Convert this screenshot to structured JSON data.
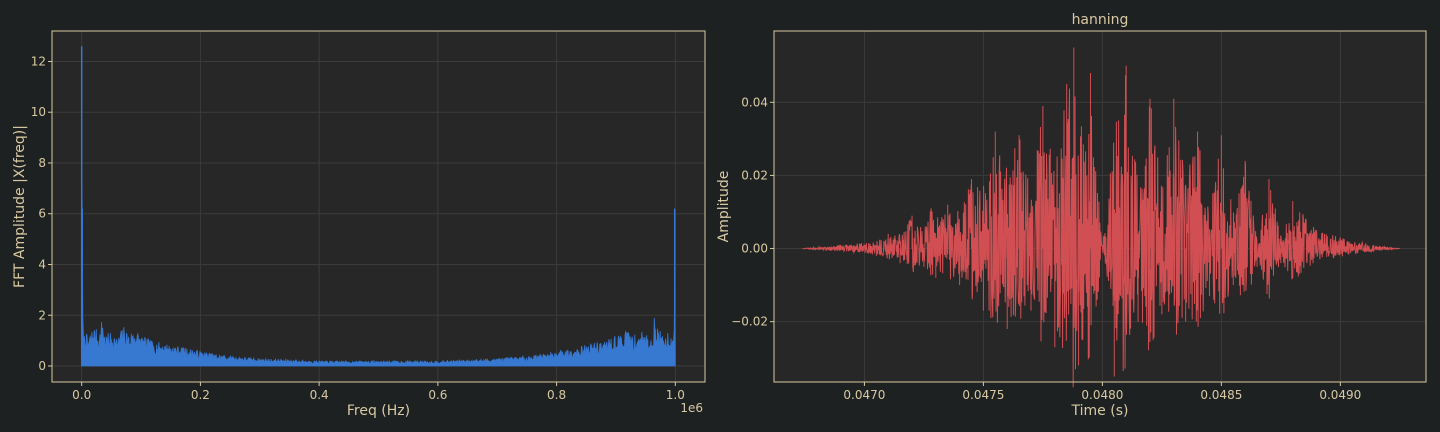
{
  "theme": {
    "figure_bg": "#1e2122",
    "axes_bg": "#272727",
    "axes_edge": "#d8c9a3",
    "grid": "#3b3b3b",
    "text": "#d8c9a3"
  },
  "chart_data": [
    {
      "type": "line",
      "title": "",
      "xlabel": "Freq (Hz)",
      "ylabel": "FFT Amplitude |X(freq)|",
      "x_offset_text": "1e6",
      "xlim": [
        -0.05,
        1.05
      ],
      "ylim": [
        -0.63,
        13.2
      ],
      "xticks": [
        0.0,
        0.2,
        0.4,
        0.6,
        0.8,
        1.0
      ],
      "xtick_labels": [
        "0.0",
        "0.2",
        "0.4",
        "0.6",
        "0.8",
        "1.0"
      ],
      "yticks": [
        0,
        2,
        4,
        6,
        8,
        10,
        12
      ],
      "ytick_labels": [
        "0",
        "2",
        "4",
        "6",
        "8",
        "10",
        "12"
      ],
      "grid": true,
      "series": [
        {
          "color": "#3778d1",
          "fill": true,
          "x": [
            0.0,
            0.001,
            0.002,
            0.004,
            0.006,
            0.01,
            0.02,
            0.03,
            0.035,
            0.04,
            0.05,
            0.06,
            0.07,
            0.08,
            0.09,
            0.1,
            0.12,
            0.14,
            0.16,
            0.18,
            0.2,
            0.22,
            0.25,
            0.3,
            0.35,
            0.4,
            0.45,
            0.5,
            0.55,
            0.6,
            0.65,
            0.7,
            0.75,
            0.78,
            0.8,
            0.82,
            0.84,
            0.86,
            0.88,
            0.9,
            0.91,
            0.92,
            0.93,
            0.94,
            0.95,
            0.96,
            0.965,
            0.97,
            0.98,
            0.99,
            0.994,
            0.996,
            0.998,
            0.999,
            1.0
          ],
          "y": [
            12.6,
            6.2,
            1.6,
            1.2,
            1.5,
            1.1,
            1.6,
            1.3,
            2.0,
            1.2,
            1.4,
            1.1,
            1.6,
            1.3,
            1.5,
            1.2,
            1.0,
            0.9,
            0.8,
            0.7,
            0.6,
            0.5,
            0.4,
            0.3,
            0.25,
            0.2,
            0.2,
            0.2,
            0.2,
            0.2,
            0.25,
            0.3,
            0.4,
            0.5,
            0.6,
            0.7,
            0.8,
            0.9,
            1.0,
            1.2,
            1.3,
            1.5,
            1.2,
            1.4,
            1.3,
            1.1,
            2.0,
            1.5,
            1.3,
            1.4,
            1.2,
            1.5,
            1.4,
            6.2,
            0.9
          ]
        }
      ]
    },
    {
      "type": "line",
      "title": "hanning",
      "xlabel": "Time (s)",
      "ylabel": "Amplitude",
      "xlim": [
        0.04662,
        0.04936
      ],
      "ylim": [
        -0.0365,
        0.0595
      ],
      "xticks": [
        0.047,
        0.0475,
        0.048,
        0.0485,
        0.049
      ],
      "xtick_labels": [
        "0.0470",
        "0.0475",
        "0.0480",
        "0.0485",
        "0.0490"
      ],
      "yticks": [
        -0.02,
        0.0,
        0.02,
        0.04
      ],
      "ytick_labels": [
        "−0.02",
        "0.00",
        "0.02",
        "0.04"
      ],
      "grid": true,
      "series": [
        {
          "color": "#d14e52",
          "x": [
            0.04674,
            0.0469,
            0.04705,
            0.0471,
            0.04715,
            0.0472,
            0.04725,
            0.04728,
            0.0473,
            0.04735,
            0.0474,
            0.04745,
            0.0475,
            0.04755,
            0.0476,
            0.04765,
            0.0477,
            0.04775,
            0.0478,
            0.04785,
            0.04788,
            0.0479,
            0.04795,
            0.048,
            0.04805,
            0.0481,
            0.04815,
            0.0482,
            0.04825,
            0.0483,
            0.04835,
            0.0484,
            0.04845,
            0.0485,
            0.04855,
            0.0486,
            0.04865,
            0.0487,
            0.04875,
            0.0488,
            0.0489,
            0.049,
            0.04914,
            0.04925
          ],
          "y": [
            0.0,
            0.001,
            -0.002,
            0.004,
            -0.004,
            0.009,
            -0.005,
            0.011,
            -0.008,
            0.012,
            -0.01,
            0.019,
            -0.017,
            0.032,
            -0.022,
            0.031,
            -0.017,
            0.039,
            -0.027,
            0.045,
            0.055,
            -0.032,
            0.048,
            0.0,
            -0.035,
            0.05,
            -0.02,
            0.041,
            -0.018,
            0.041,
            -0.02,
            0.032,
            -0.013,
            0.031,
            -0.01,
            0.024,
            -0.005,
            0.019,
            -0.004,
            0.013,
            0.005,
            0.003,
            0.001,
            0.0
          ]
        }
      ]
    }
  ]
}
